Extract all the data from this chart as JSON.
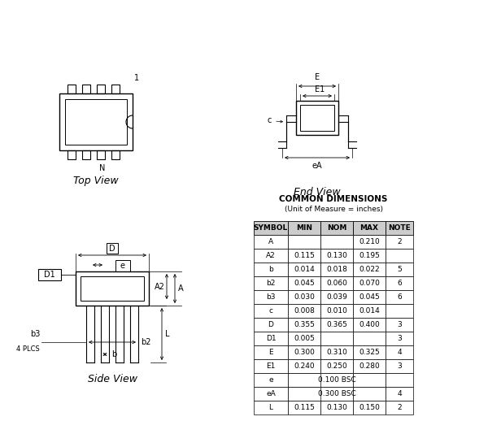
{
  "title": "COMMON DIMENSIONS",
  "subtitle": "(Unit of Measure = inches)",
  "table_headers": [
    "SYMBOL",
    "MIN",
    "NOM",
    "MAX",
    "NOTE"
  ],
  "table_rows": [
    [
      "A",
      "",
      "",
      "0.210",
      "2"
    ],
    [
      "A2",
      "0.115",
      "0.130",
      "0.195",
      ""
    ],
    [
      "b",
      "0.014",
      "0.018",
      "0.022",
      "5"
    ],
    [
      "b2",
      "0.045",
      "0.060",
      "0.070",
      "6"
    ],
    [
      "b3",
      "0.030",
      "0.039",
      "0.045",
      "6"
    ],
    [
      "c",
      "0.008",
      "0.010",
      "0.014",
      ""
    ],
    [
      "D",
      "0.355",
      "0.365",
      "0.400",
      "3"
    ],
    [
      "D1",
      "0.005",
      "",
      "",
      "3"
    ],
    [
      "E",
      "0.300",
      "0.310",
      "0.325",
      "4"
    ],
    [
      "E1",
      "0.240",
      "0.250",
      "0.280",
      "3"
    ],
    [
      "e",
      "0.100 BSC",
      "",
      "",
      ""
    ],
    [
      "eA",
      "0.300 BSC",
      "",
      "",
      "4"
    ],
    [
      "L",
      "0.115",
      "0.130",
      "0.150",
      "2"
    ]
  ],
  "bsc_rows": [
    10,
    11
  ],
  "bg_color": "#ffffff",
  "line_color": "#000000"
}
